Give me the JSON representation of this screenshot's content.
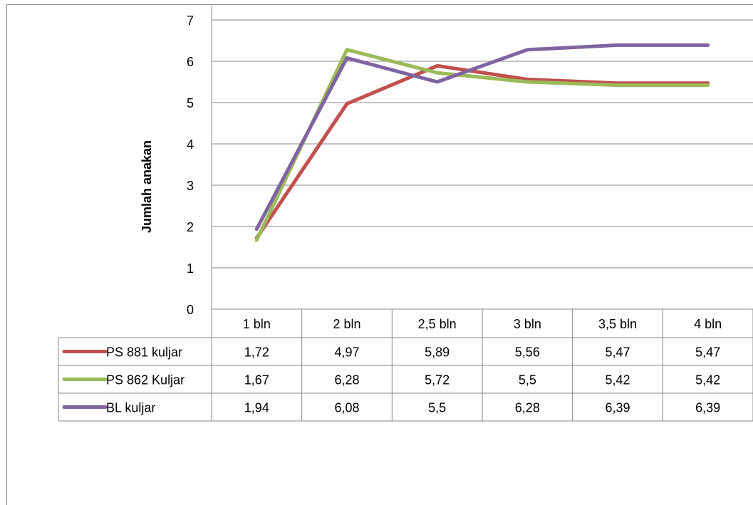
{
  "chart_data": {
    "type": "line",
    "ylabel": "Jumlah anakan",
    "xlabel": "",
    "ylim": [
      0,
      7
    ],
    "yticks": [
      0,
      1,
      2,
      3,
      4,
      5,
      6,
      7
    ],
    "grid": true,
    "legend": "data-table",
    "categories": [
      "1 bln",
      "2 bln",
      "2,5 bln",
      "3 bln",
      "3,5 bln",
      "4 bln"
    ],
    "series": [
      {
        "name": "PS 881 kuljar",
        "color": "#c0504d",
        "values": [
          1.72,
          4.97,
          5.89,
          5.56,
          5.47,
          5.47
        ],
        "labels": [
          "1,72",
          "4,97",
          "5,89",
          "5,56",
          "5,47",
          "5,47"
        ]
      },
      {
        "name": "PS 862 Kuljar",
        "color": "#9bbb59",
        "values": [
          1.67,
          6.28,
          5.72,
          5.5,
          5.42,
          5.42
        ],
        "labels": [
          "1,67",
          "6,28",
          "5,72",
          "5,5",
          "5,42",
          "5,42"
        ]
      },
      {
        "name": "BL kuljar",
        "color": "#8064a2",
        "values": [
          1.94,
          6.08,
          5.5,
          6.28,
          6.39,
          6.39
        ],
        "labels": [
          "1,94",
          "6,08",
          "5,5",
          "6,28",
          "6,39",
          "6,39"
        ]
      }
    ]
  }
}
